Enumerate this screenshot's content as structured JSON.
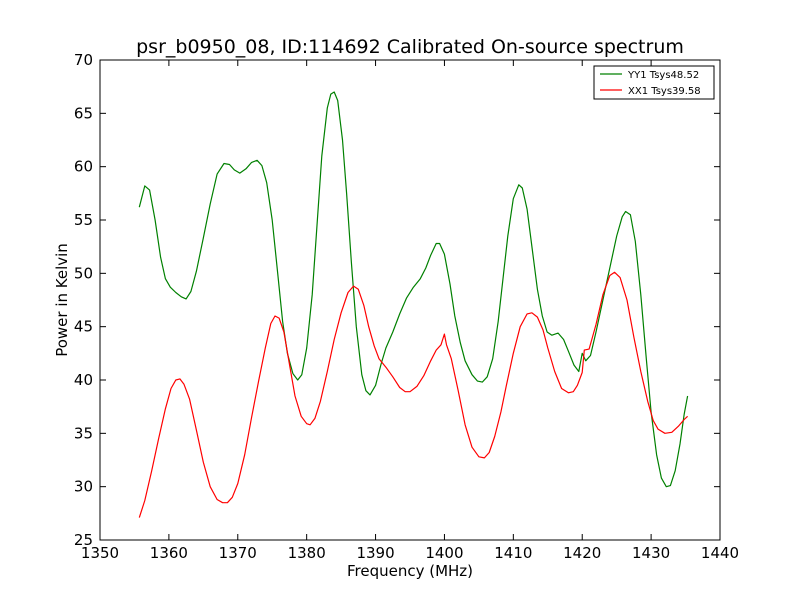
{
  "chart_data": {
    "type": "line",
    "title": "psr_b0950_08, ID:114692 Calibrated On-source spectrum",
    "xlabel": "Frequency (MHz)",
    "ylabel": "Power in Kelvin",
    "xlim": [
      1350,
      1440
    ],
    "ylim": [
      25,
      70
    ],
    "xticks": [
      "1350",
      "1360",
      "1370",
      "1380",
      "1390",
      "1400",
      "1410",
      "1420",
      "1430",
      "1440"
    ],
    "yticks": [
      "25",
      "30",
      "35",
      "40",
      "45",
      "50",
      "55",
      "60",
      "65",
      "70"
    ],
    "grid": false,
    "legend_position": "top-right",
    "series": [
      {
        "name": "YY1 Tsys48.52",
        "color": "#008000",
        "points": [
          [
            1355.7,
            56.2
          ],
          [
            1356.5,
            58.2
          ],
          [
            1357.2,
            57.8
          ],
          [
            1358.0,
            55.0
          ],
          [
            1358.8,
            51.5
          ],
          [
            1359.5,
            49.5
          ],
          [
            1360.2,
            48.7
          ],
          [
            1361.0,
            48.2
          ],
          [
            1361.8,
            47.8
          ],
          [
            1362.5,
            47.6
          ],
          [
            1363.2,
            48.3
          ],
          [
            1364.0,
            50.2
          ],
          [
            1365.0,
            53.3
          ],
          [
            1366.0,
            56.5
          ],
          [
            1367.0,
            59.3
          ],
          [
            1368.0,
            60.3
          ],
          [
            1368.8,
            60.2
          ],
          [
            1369.5,
            59.7
          ],
          [
            1370.3,
            59.4
          ],
          [
            1371.2,
            59.8
          ],
          [
            1372.0,
            60.4
          ],
          [
            1372.8,
            60.6
          ],
          [
            1373.5,
            60.1
          ],
          [
            1374.2,
            58.5
          ],
          [
            1375.0,
            55.0
          ],
          [
            1375.8,
            50.0
          ],
          [
            1376.5,
            45.5
          ],
          [
            1377.2,
            42.5
          ],
          [
            1378.0,
            40.6
          ],
          [
            1378.7,
            40.0
          ],
          [
            1379.3,
            40.5
          ],
          [
            1380.0,
            43.0
          ],
          [
            1380.8,
            48.0
          ],
          [
            1381.5,
            54.5
          ],
          [
            1382.2,
            61.0
          ],
          [
            1383.0,
            65.5
          ],
          [
            1383.5,
            66.8
          ],
          [
            1384.0,
            67.0
          ],
          [
            1384.5,
            66.2
          ],
          [
            1385.2,
            62.5
          ],
          [
            1385.8,
            57.5
          ],
          [
            1386.5,
            51.0
          ],
          [
            1387.2,
            45.0
          ],
          [
            1388.0,
            40.5
          ],
          [
            1388.6,
            39.0
          ],
          [
            1389.2,
            38.6
          ],
          [
            1390.0,
            39.5
          ],
          [
            1390.8,
            41.5
          ],
          [
            1391.5,
            43.0
          ],
          [
            1392.5,
            44.5
          ],
          [
            1393.5,
            46.2
          ],
          [
            1394.5,
            47.7
          ],
          [
            1395.5,
            48.7
          ],
          [
            1396.5,
            49.5
          ],
          [
            1397.3,
            50.5
          ],
          [
            1398.0,
            51.7
          ],
          [
            1398.8,
            52.8
          ],
          [
            1399.3,
            52.8
          ],
          [
            1400.0,
            51.8
          ],
          [
            1400.8,
            49.0
          ],
          [
            1401.5,
            46.0
          ],
          [
            1402.3,
            43.5
          ],
          [
            1403.0,
            41.8
          ],
          [
            1404.0,
            40.5
          ],
          [
            1404.8,
            39.9
          ],
          [
            1405.5,
            39.8
          ],
          [
            1406.2,
            40.3
          ],
          [
            1407.0,
            42.0
          ],
          [
            1407.8,
            45.5
          ],
          [
            1408.5,
            49.5
          ],
          [
            1409.2,
            53.5
          ],
          [
            1410.0,
            57.0
          ],
          [
            1410.8,
            58.3
          ],
          [
            1411.3,
            58.0
          ],
          [
            1412.0,
            56.0
          ],
          [
            1412.8,
            52.0
          ],
          [
            1413.5,
            48.5
          ],
          [
            1414.2,
            46.0
          ],
          [
            1414.9,
            44.5
          ],
          [
            1415.6,
            44.2
          ],
          [
            1416.5,
            44.4
          ],
          [
            1417.3,
            43.8
          ],
          [
            1418.0,
            42.7
          ],
          [
            1418.8,
            41.4
          ],
          [
            1419.5,
            40.8
          ],
          [
            1420.0,
            42.5
          ],
          [
            1420.5,
            41.8
          ],
          [
            1421.2,
            42.3
          ],
          [
            1422.0,
            44.5
          ],
          [
            1423.0,
            47.5
          ],
          [
            1424.0,
            50.5
          ],
          [
            1425.0,
            53.5
          ],
          [
            1425.8,
            55.3
          ],
          [
            1426.3,
            55.8
          ],
          [
            1427.0,
            55.5
          ],
          [
            1427.7,
            53.0
          ],
          [
            1428.5,
            48.0
          ],
          [
            1429.3,
            42.0
          ],
          [
            1430.0,
            37.0
          ],
          [
            1430.8,
            33.0
          ],
          [
            1431.5,
            30.8
          ],
          [
            1432.2,
            30.0
          ],
          [
            1432.8,
            30.1
          ],
          [
            1433.5,
            31.5
          ],
          [
            1434.2,
            34.0
          ],
          [
            1434.8,
            36.8
          ],
          [
            1435.3,
            38.5
          ]
        ]
      },
      {
        "name": "XX1 Tsys39.58",
        "color": "#ff0000",
        "points": [
          [
            1355.7,
            27.1
          ],
          [
            1356.5,
            28.7
          ],
          [
            1357.5,
            31.5
          ],
          [
            1358.5,
            34.5
          ],
          [
            1359.5,
            37.3
          ],
          [
            1360.3,
            39.2
          ],
          [
            1361.0,
            40.0
          ],
          [
            1361.6,
            40.1
          ],
          [
            1362.2,
            39.6
          ],
          [
            1363.0,
            38.2
          ],
          [
            1364.0,
            35.3
          ],
          [
            1365.0,
            32.3
          ],
          [
            1366.0,
            30.0
          ],
          [
            1367.0,
            28.8
          ],
          [
            1367.8,
            28.5
          ],
          [
            1368.5,
            28.5
          ],
          [
            1369.2,
            29.0
          ],
          [
            1370.0,
            30.3
          ],
          [
            1371.0,
            33.0
          ],
          [
            1372.0,
            36.5
          ],
          [
            1373.0,
            39.8
          ],
          [
            1374.0,
            43.0
          ],
          [
            1374.8,
            45.3
          ],
          [
            1375.4,
            46.0
          ],
          [
            1376.0,
            45.8
          ],
          [
            1376.7,
            44.5
          ],
          [
            1377.5,
            41.5
          ],
          [
            1378.3,
            38.5
          ],
          [
            1379.2,
            36.6
          ],
          [
            1380.0,
            35.9
          ],
          [
            1380.5,
            35.8
          ],
          [
            1381.2,
            36.4
          ],
          [
            1382.0,
            38.0
          ],
          [
            1383.0,
            40.8
          ],
          [
            1384.0,
            43.8
          ],
          [
            1385.0,
            46.3
          ],
          [
            1386.0,
            48.2
          ],
          [
            1386.8,
            48.8
          ],
          [
            1387.5,
            48.5
          ],
          [
            1388.3,
            47.0
          ],
          [
            1389.0,
            45.0
          ],
          [
            1389.8,
            43.2
          ],
          [
            1390.5,
            42.0
          ],
          [
            1391.5,
            41.2
          ],
          [
            1392.5,
            40.3
          ],
          [
            1393.5,
            39.3
          ],
          [
            1394.3,
            38.9
          ],
          [
            1395.0,
            38.9
          ],
          [
            1396.0,
            39.4
          ],
          [
            1397.0,
            40.4
          ],
          [
            1398.0,
            41.8
          ],
          [
            1398.8,
            42.8
          ],
          [
            1399.5,
            43.3
          ],
          [
            1400.0,
            44.3
          ],
          [
            1400.3,
            43.3
          ],
          [
            1401.0,
            42.0
          ],
          [
            1402.0,
            39.0
          ],
          [
            1403.0,
            35.8
          ],
          [
            1404.0,
            33.7
          ],
          [
            1405.0,
            32.8
          ],
          [
            1405.8,
            32.7
          ],
          [
            1406.5,
            33.2
          ],
          [
            1407.3,
            34.7
          ],
          [
            1408.2,
            37.0
          ],
          [
            1409.0,
            39.5
          ],
          [
            1410.0,
            42.5
          ],
          [
            1411.0,
            45.0
          ],
          [
            1412.0,
            46.2
          ],
          [
            1412.7,
            46.3
          ],
          [
            1413.5,
            45.9
          ],
          [
            1414.3,
            44.7
          ],
          [
            1415.0,
            43.0
          ],
          [
            1416.0,
            40.8
          ],
          [
            1417.0,
            39.2
          ],
          [
            1418.0,
            38.8
          ],
          [
            1418.7,
            38.9
          ],
          [
            1419.3,
            39.5
          ],
          [
            1420.0,
            40.7
          ],
          [
            1420.3,
            42.8
          ],
          [
            1421.0,
            42.9
          ],
          [
            1422.0,
            45.2
          ],
          [
            1423.0,
            48.0
          ],
          [
            1424.0,
            49.8
          ],
          [
            1424.7,
            50.1
          ],
          [
            1425.5,
            49.6
          ],
          [
            1426.5,
            47.5
          ],
          [
            1427.5,
            44.0
          ],
          [
            1428.5,
            40.8
          ],
          [
            1429.5,
            38.0
          ],
          [
            1430.3,
            36.2
          ],
          [
            1431.0,
            35.4
          ],
          [
            1432.0,
            35.0
          ],
          [
            1433.0,
            35.1
          ],
          [
            1434.0,
            35.7
          ],
          [
            1434.8,
            36.3
          ],
          [
            1435.3,
            36.6
          ]
        ]
      }
    ]
  }
}
